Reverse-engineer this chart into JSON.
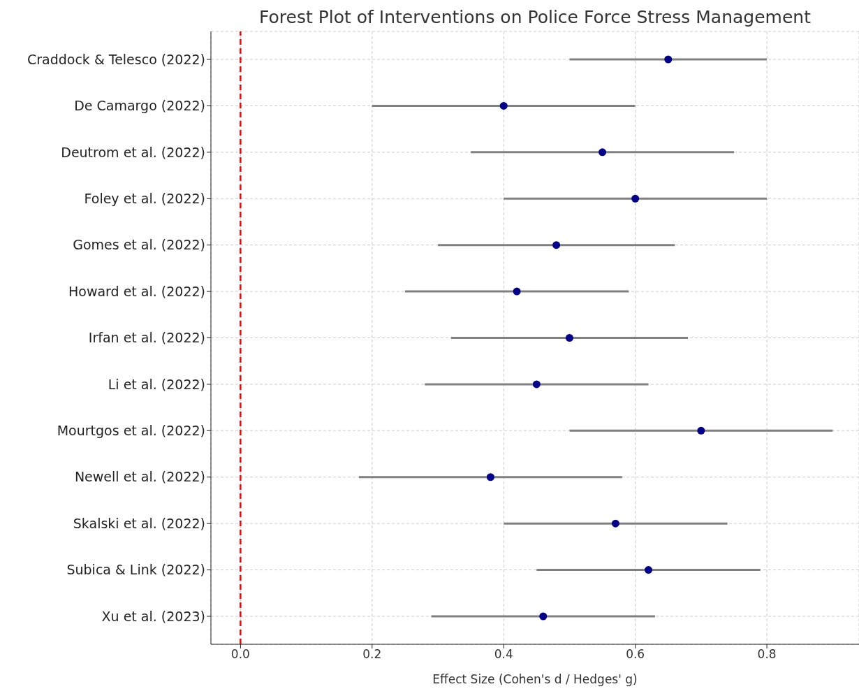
{
  "chart_data": {
    "type": "scatter",
    "orientation": "horizontal",
    "title": "Forest Plot of Interventions on Police Force Stress Management",
    "xlabel": "Effect Size (Cohen's d / Hedges' g)",
    "categories": [
      "Craddock & Telesco (2022)",
      "De Camargo (2022)",
      "Deutrom et al. (2022)",
      "Foley et al. (2022)",
      "Gomes et al. (2022)",
      "Howard et al. (2022)",
      "Irfan et al. (2022)",
      "Li et al. (2022)",
      "Mourtgos et al. (2022)",
      "Newell et al. (2022)",
      "Skalski et al. (2022)",
      "Subica & Link (2022)",
      "Xu et al. (2023)"
    ],
    "values": [
      0.65,
      0.4,
      0.55,
      0.6,
      0.48,
      0.42,
      0.5,
      0.45,
      0.7,
      0.38,
      0.57,
      0.62,
      0.46
    ],
    "errors": [
      [
        0.5,
        0.8
      ],
      [
        0.2,
        0.6
      ],
      [
        0.35,
        0.75
      ],
      [
        0.4,
        0.8
      ],
      [
        0.3,
        0.66
      ],
      [
        0.25,
        0.59
      ],
      [
        0.32,
        0.68
      ],
      [
        0.28,
        0.62
      ],
      [
        0.5,
        0.9
      ],
      [
        0.18,
        0.58
      ],
      [
        0.4,
        0.74
      ],
      [
        0.45,
        0.79
      ],
      [
        0.29,
        0.63
      ]
    ],
    "color": "#00008b",
    "xlim": [
      -0.045,
      0.94
    ],
    "xticks": [
      {
        "value": 0,
        "label": "0.0"
      },
      0.2,
      0.4,
      0.6,
      0.8
    ],
    "ref_lines": [
      {
        "axis": "x",
        "value": 0,
        "color": "#ff0000",
        "line_style": "dashed"
      }
    ],
    "grid": true,
    "marker": "circle"
  }
}
